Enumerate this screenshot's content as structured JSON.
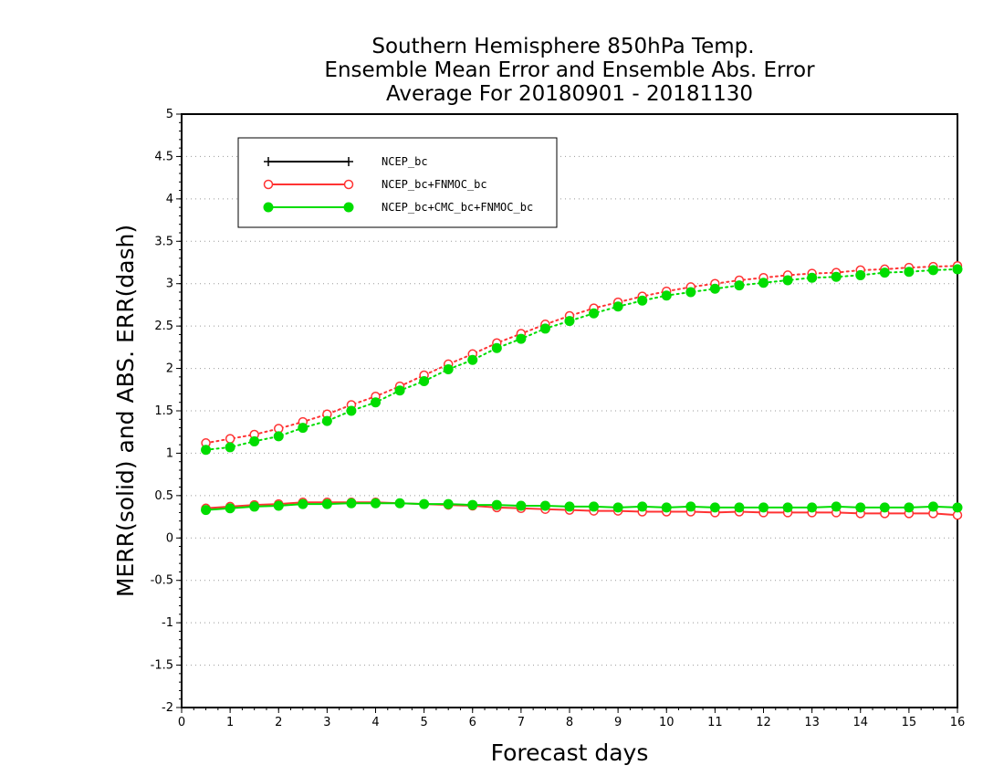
{
  "chart_data": {
    "type": "line",
    "title_lines": [
      "Southern Hemisphere 850hPa Temp.",
      "Ensemble Mean Error and Ensemble Abs. Error",
      "Average For 20180901 - 20181130"
    ],
    "xlabel": "Forecast days",
    "ylabel": "MERR(solid) and ABS. ERR(dash)",
    "xlim": [
      0,
      16
    ],
    "ylim": [
      -2,
      5
    ],
    "x_ticks": [
      0,
      1,
      2,
      3,
      4,
      5,
      6,
      7,
      8,
      9,
      10,
      11,
      12,
      13,
      14,
      15,
      16
    ],
    "y_ticks": [
      -2,
      -1.5,
      -1,
      -0.5,
      0,
      0.5,
      1,
      1.5,
      2,
      2.5,
      3,
      3.5,
      4,
      4.5,
      5
    ],
    "y_tick_labels": [
      "-2",
      "-1.5",
      "-1",
      "-0.5",
      "0",
      "0.5",
      "1",
      "1.5",
      "2",
      "2.5",
      "3",
      "3.5",
      "4",
      "4.5",
      "5"
    ],
    "grid": "horizontal dotted",
    "legend_position": "top-left",
    "x": [
      0.5,
      1,
      1.5,
      2,
      2.5,
      3,
      3.5,
      4,
      4.5,
      5,
      5.5,
      6,
      6.5,
      7,
      7.5,
      8,
      8.5,
      9,
      9.5,
      10,
      10.5,
      11,
      11.5,
      12,
      12.5,
      13,
      13.5,
      14,
      14.5,
      15,
      15.5,
      16
    ],
    "series": [
      {
        "name": "NCEP_bc",
        "color": "#000000",
        "marker": "plus",
        "merr": [],
        "abs_err": []
      },
      {
        "name": "NCEP_bc+FNMOC_bc",
        "color": "#ff3333",
        "marker": "open-circle",
        "merr": [
          0.35,
          0.37,
          0.39,
          0.4,
          0.42,
          0.42,
          0.42,
          0.42,
          0.41,
          0.4,
          0.39,
          0.38,
          0.36,
          0.35,
          0.34,
          0.33,
          0.32,
          0.32,
          0.31,
          0.31,
          0.31,
          0.3,
          0.31,
          0.3,
          0.3,
          0.3,
          0.3,
          0.29,
          0.29,
          0.29,
          0.29,
          0.27
        ],
        "abs_err": [
          1.12,
          1.17,
          1.22,
          1.29,
          1.37,
          1.46,
          1.57,
          1.67,
          1.79,
          1.92,
          2.05,
          2.17,
          2.3,
          2.41,
          2.52,
          2.62,
          2.71,
          2.78,
          2.85,
          2.91,
          2.96,
          3.0,
          3.04,
          3.07,
          3.1,
          3.12,
          3.13,
          3.16,
          3.17,
          3.19,
          3.2,
          3.21
        ]
      },
      {
        "name": "NCEP_bc+CMC_bc+FNMOC_bc",
        "color": "#00dd00",
        "marker": "filled-circle",
        "merr": [
          0.33,
          0.35,
          0.37,
          0.38,
          0.4,
          0.4,
          0.41,
          0.41,
          0.41,
          0.4,
          0.4,
          0.39,
          0.39,
          0.38,
          0.38,
          0.37,
          0.37,
          0.36,
          0.37,
          0.36,
          0.37,
          0.36,
          0.36,
          0.36,
          0.36,
          0.36,
          0.37,
          0.36,
          0.36,
          0.36,
          0.37,
          0.36
        ],
        "abs_err": [
          1.04,
          1.07,
          1.14,
          1.2,
          1.3,
          1.38,
          1.5,
          1.6,
          1.74,
          1.85,
          1.99,
          2.1,
          2.24,
          2.35,
          2.47,
          2.56,
          2.65,
          2.73,
          2.8,
          2.86,
          2.9,
          2.94,
          2.98,
          3.01,
          3.04,
          3.07,
          3.08,
          3.1,
          3.13,
          3.14,
          3.16,
          3.17
        ]
      }
    ]
  }
}
